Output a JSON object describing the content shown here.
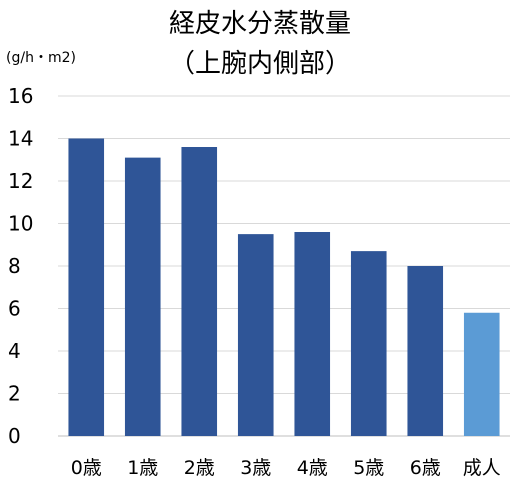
{
  "chart_data": {
    "type": "bar",
    "title": [
      "経皮水分蒸散量",
      "（上腕内側部）"
    ],
    "unit_label": "(g/h・m2)",
    "categories": [
      "0歳",
      "1歳",
      "2歳",
      "3歳",
      "4歳",
      "5歳",
      "6歳",
      "成人"
    ],
    "values": [
      14.0,
      13.1,
      13.6,
      9.5,
      9.6,
      8.7,
      8.0,
      5.8
    ],
    "ylim": [
      0,
      16
    ],
    "yticks": [
      0,
      2,
      4,
      6,
      8,
      10,
      12,
      14,
      16
    ],
    "grid": true,
    "colors": {
      "bar": "#2F5597",
      "highlight": "#5B9BD5",
      "grid": "#D9D9D9",
      "axis": "#BFBFBF"
    },
    "highlight_category": "成人"
  }
}
